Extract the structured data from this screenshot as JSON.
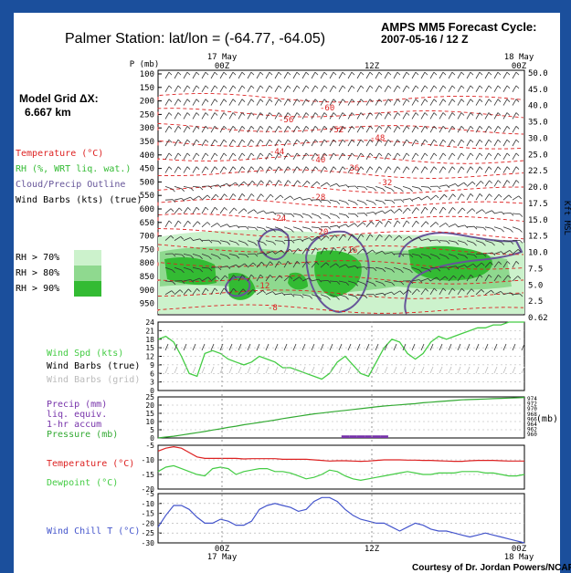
{
  "header": {
    "title": "Palmer Station:  lat/lon = (-64.77, -64.05)",
    "cycle_label": "AMPS MM5 Forecast Cycle:",
    "cycle_value": "2007-05-16 / 12  Z"
  },
  "grid": {
    "label": "Model Grid ΔX:",
    "value": "6.667 km"
  },
  "legend_left": {
    "temperature": "Temperature (°C)",
    "rh": "RH (%, WRT liq. wat.)",
    "cloud": "Cloud/Precip Outline",
    "barbs": "Wind Barbs (kts) (true)",
    "rh_levels": [
      "RH > 70%",
      "RH > 80%",
      "RH > 90%"
    ]
  },
  "time_axis": {
    "top_labels": [
      {
        "day": "17 May",
        "hour": "00Z"
      },
      {
        "day": "",
        "hour": "12Z"
      },
      {
        "day": "18 May",
        "hour": "00Z"
      }
    ],
    "bottom_labels": [
      {
        "hour": "00Z",
        "day": "17 May"
      },
      {
        "hour": "12Z",
        "day": ""
      },
      {
        "hour": "00Z",
        "day": "18 May"
      }
    ]
  },
  "colors": {
    "temperature": "#dd2222",
    "rh_label": "#33bb33",
    "cloud": "#665599",
    "rh70": "#ccf2cc",
    "rh80": "#8fd98f",
    "rh90": "#33bb33",
    "wind_speed": "#44cc44",
    "precip_label": "#7733aa",
    "pressure": "#33aa33",
    "dewpoint": "#44cc44",
    "chill": "#4455cc",
    "grid_barbs": "#bbbbbb"
  },
  "sounding": {
    "p_axis_label": "P (mb)",
    "p_ticks": [
      "100",
      "150",
      "200",
      "250",
      "300",
      "350",
      "400",
      "450",
      "500",
      "550",
      "600",
      "650",
      "700",
      "750",
      "800",
      "850",
      "900",
      "950"
    ],
    "kft_label": "Kft MSL",
    "kft_ticks": [
      "50.0",
      "45.0",
      "40.0",
      "35.0",
      "30.0",
      "25.0",
      "22.5",
      "20.0",
      "17.5",
      "15.0",
      "12.5",
      "10.0",
      "7.5",
      "5.0",
      "2.5",
      "0.62"
    ],
    "temp_contour_labels": [
      "-56",
      "-60",
      "-52",
      "-48",
      "-44",
      "-40",
      "-36",
      "-32",
      "-28",
      "-24",
      "-20",
      "-16",
      "-12",
      "-8"
    ]
  },
  "chart_data": [
    {
      "type": "line",
      "ylabel": "Wind Spd (kts)",
      "extra_labels": [
        "Wind Barbs (true)",
        "Wind Barbs (grid)"
      ],
      "ylim": [
        0,
        24
      ],
      "yticks": [
        "24",
        "21",
        "18",
        "15",
        "12",
        "9",
        "6",
        "3",
        "0"
      ],
      "series": [
        {
          "values": [
            18,
            19,
            17,
            12,
            6,
            5,
            13,
            14,
            13,
            11,
            10,
            9,
            10,
            12,
            11,
            10,
            8,
            8,
            7,
            6,
            5,
            4,
            6,
            10,
            12,
            9,
            6,
            5,
            10,
            15,
            18,
            17,
            13,
            11,
            13,
            17,
            19,
            18,
            19,
            20,
            21,
            22,
            22,
            23,
            23,
            24,
            24,
            24
          ]
        }
      ]
    },
    {
      "type": "line",
      "ylabel": "Precip (mm)",
      "extra_labels": [
        "liq. equiv.",
        "1-hr accum",
        "Pressure (mb)"
      ],
      "ylim": [
        0,
        25
      ],
      "yticks": [
        "25",
        "20",
        "15",
        "10",
        "5",
        "0"
      ],
      "y2label": "(mb)",
      "y2ticks": [
        "974",
        "972",
        "970",
        "968",
        "966",
        "964",
        "962",
        "960"
      ],
      "series": [
        {
          "values": [
            960,
            960.3,
            960.6,
            961,
            961.4,
            961.8,
            962.2,
            962.7,
            963.1,
            963.6,
            964,
            964.5,
            964.9,
            965.3,
            965.7,
            966.1,
            966.6,
            967,
            967.4,
            967.8,
            968.2,
            968.5,
            968.8,
            969.1,
            969.4,
            969.7,
            970,
            970.3,
            970.6,
            970.9,
            971.1,
            971.3,
            971.5,
            971.7,
            972,
            972.2,
            972.4,
            972.6,
            972.8,
            973,
            973.1,
            973.2,
            973.3,
            973.4,
            973.5,
            973.6,
            973.7,
            973.8
          ]
        }
      ],
      "precip": {
        "x": [
          24,
          25,
          26,
          27,
          28,
          29
        ],
        "values": [
          1,
          1,
          1,
          1,
          1,
          1
        ]
      }
    },
    {
      "type": "line",
      "ylabel": "Temperature (°C)",
      "extra_labels": [
        "Dewpoint (°C)"
      ],
      "ylim": [
        -20,
        -5
      ],
      "yticks": [
        "-5",
        "-10",
        "-15",
        "-20"
      ],
      "series": [
        {
          "values": [
            -7,
            -6,
            -5.5,
            -6,
            -7.5,
            -9,
            -9.5,
            -9.5,
            -9.5,
            -9.5,
            -9.5,
            -9.7,
            -9.6,
            -9.6,
            -9.6,
            -9.6,
            -9.8,
            -9.8,
            -9.8,
            -9.8,
            -10,
            -10.2,
            -10.4,
            -10.3,
            -10.3,
            -10.4,
            -10.5,
            -10.4,
            -10.2,
            -10,
            -10,
            -10,
            -10.1,
            -10.1,
            -10.2,
            -10.2,
            -10.3,
            -10.4,
            -10.5,
            -10.5,
            -10.3,
            -10.2,
            -10.2,
            -10.2,
            -10.3,
            -10.4,
            -10.4,
            -10.4
          ]
        },
        {
          "values": [
            -14,
            -12.5,
            -12,
            -13,
            -14,
            -15,
            -15.5,
            -13,
            -12.5,
            -13,
            -15,
            -14,
            -13.5,
            -13,
            -13,
            -14,
            -14,
            -14.5,
            -15.5,
            -16.5,
            -16,
            -15,
            -13.5,
            -14,
            -15.5,
            -16.5,
            -17,
            -16.5,
            -16,
            -15.5,
            -15,
            -14.5,
            -14,
            -14.5,
            -15,
            -15,
            -14.5,
            -14.5,
            -14.5,
            -14,
            -14,
            -14,
            -14.5,
            -14.5,
            -15,
            -15.5,
            -15.5,
            -15
          ]
        }
      ]
    },
    {
      "type": "line",
      "ylabel": "Wind Chill T (°C)",
      "ylim": [
        -30,
        -5
      ],
      "yticks": [
        "-5",
        "-10",
        "-15",
        "-20",
        "-25",
        "-30"
      ],
      "series": [
        {
          "values": [
            -22,
            -16,
            -11,
            -11,
            -13,
            -17,
            -20,
            -20,
            -18,
            -19,
            -21,
            -21,
            -19,
            -13,
            -11,
            -10,
            -11,
            -12,
            -14,
            -13,
            -9,
            -7,
            -7,
            -9,
            -13,
            -16,
            -18,
            -19,
            -20,
            -20,
            -22,
            -24,
            -22,
            -20,
            -21,
            -23,
            -24,
            -24,
            -25,
            -26,
            -27,
            -26,
            -25,
            -26,
            -27,
            -28,
            -29,
            -30
          ]
        }
      ]
    }
  ],
  "footer": {
    "credit": "Courtesy of Dr. Jordan Powers/NCAR"
  }
}
